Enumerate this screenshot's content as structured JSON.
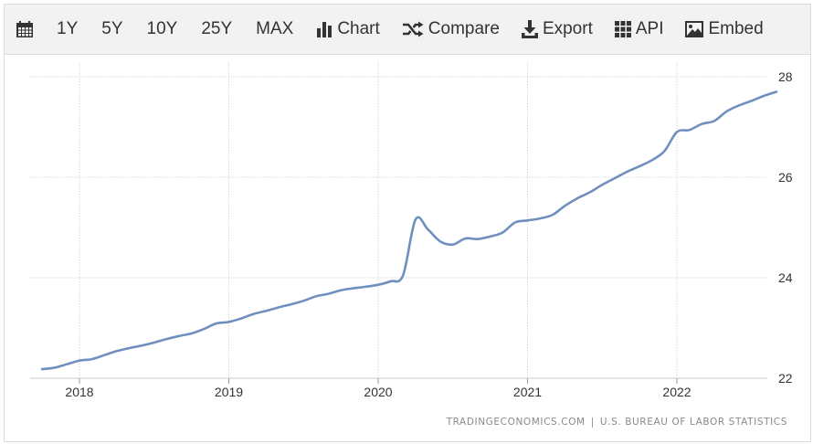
{
  "toolbar": {
    "calendar_icon": "calendar-icon",
    "ranges": [
      "1Y",
      "5Y",
      "10Y",
      "25Y",
      "MAX"
    ],
    "chart_label": "Chart",
    "compare_label": "Compare",
    "export_label": "Export",
    "api_label": "API",
    "embed_label": "Embed",
    "icons": {
      "chart": "bar-chart-icon",
      "compare": "shuffle-icon",
      "export": "download-icon",
      "api": "grid-icon",
      "embed": "image-icon"
    }
  },
  "source": {
    "site": "TRADINGECONOMICS.COM",
    "separator": "|",
    "agency": "U.S. BUREAU OF LABOR STATISTICS"
  },
  "colors": {
    "line": "#6f90bf",
    "grid": "#d8d8d8",
    "axis_text": "#333333",
    "toolbar_bg": "#f2f2f2"
  },
  "chart_data": {
    "type": "line",
    "title": "",
    "xlabel": "",
    "ylabel": "",
    "x_ticks": [
      "2018",
      "2019",
      "2020",
      "2021",
      "2022"
    ],
    "y_ticks": [
      22,
      24,
      26,
      28
    ],
    "ylim": [
      22,
      28
    ],
    "xlim": [
      "2017-10",
      "2022-09"
    ],
    "y_axis_position": "right",
    "grid": true,
    "series": [
      {
        "x": [
          "2017-10",
          "2017-11",
          "2017-12",
          "2018-01",
          "2018-02",
          "2018-03",
          "2018-04",
          "2018-05",
          "2018-06",
          "2018-07",
          "2018-08",
          "2018-09",
          "2018-10",
          "2018-11",
          "2018-12",
          "2019-01",
          "2019-02",
          "2019-03",
          "2019-04",
          "2019-05",
          "2019-06",
          "2019-07",
          "2019-08",
          "2019-09",
          "2019-10",
          "2019-11",
          "2019-12",
          "2020-01",
          "2020-02",
          "2020-03",
          "2020-04",
          "2020-05",
          "2020-06",
          "2020-07",
          "2020-08",
          "2020-09",
          "2020-10",
          "2020-11",
          "2020-12",
          "2021-01",
          "2021-02",
          "2021-03",
          "2021-04",
          "2021-05",
          "2021-06",
          "2021-07",
          "2021-08",
          "2021-09",
          "2021-10",
          "2021-11",
          "2021-12",
          "2022-01",
          "2022-02",
          "2022-03",
          "2022-04",
          "2022-05",
          "2022-06",
          "2022-07",
          "2022-08",
          "2022-09"
        ],
        "values": [
          22.18,
          22.21,
          22.28,
          22.35,
          22.38,
          22.46,
          22.54,
          22.6,
          22.65,
          22.71,
          22.78,
          22.84,
          22.89,
          22.98,
          23.09,
          23.12,
          23.19,
          23.28,
          23.34,
          23.41,
          23.47,
          23.54,
          23.63,
          23.68,
          23.75,
          23.79,
          23.82,
          23.86,
          23.93,
          24.05,
          25.16,
          24.96,
          24.72,
          24.66,
          24.78,
          24.77,
          24.82,
          24.9,
          25.1,
          25.14,
          25.18,
          25.25,
          25.43,
          25.58,
          25.7,
          25.85,
          25.98,
          26.11,
          26.22,
          26.34,
          26.52,
          26.9,
          26.94,
          27.06,
          27.12,
          27.31,
          27.43,
          27.52,
          27.62,
          27.7
        ]
      }
    ]
  }
}
